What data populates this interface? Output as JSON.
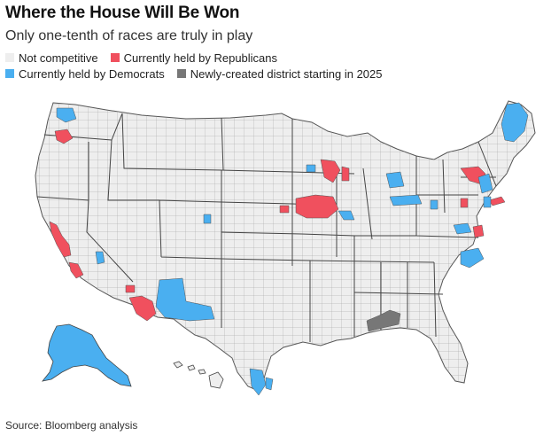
{
  "title": "Where the House Will Be Won",
  "subtitle": "Only one-tenth of races are truly in play",
  "legend": [
    {
      "label": "Not competitive",
      "color": "#eeeeee"
    },
    {
      "label": "Currently held by Republicans",
      "color": "#f0505e"
    },
    {
      "label": "Currently held by Democrats",
      "color": "#4aaff0"
    },
    {
      "label": "Newly-created district starting in 2025",
      "color": "#777777"
    }
  ],
  "source": "Source: Bloomberg analysis",
  "colors": {
    "not_competitive": "#eeeeee",
    "republican": "#f0505e",
    "democrat": "#4aaff0",
    "new_district": "#777777",
    "border": "#555555"
  }
}
